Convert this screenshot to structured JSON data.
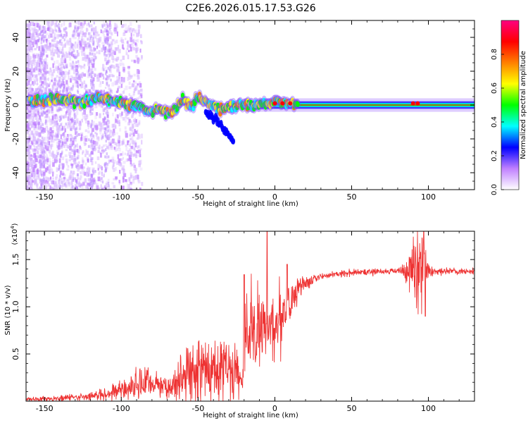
{
  "figure_title": "C2E6.2026.015.17.53.G26",
  "chart_data": [
    {
      "type": "heatmap",
      "name": "spectrogram",
      "title": "C2E6.2026.015.17.53.G26",
      "xlabel": "Height of straight line (km)",
      "ylabel": "Frequency (Hz)",
      "xlim": [
        -162,
        130
      ],
      "ylim": [
        -50,
        50
      ],
      "x_ticks": [
        -150,
        -100,
        -50,
        0,
        50,
        100
      ],
      "x_tick_labels": [
        "-150",
        "-100",
        "-50",
        "0",
        "50",
        "100"
      ],
      "y_ticks": [
        -40,
        -20,
        0,
        20,
        40
      ],
      "y_tick_labels": [
        "-40",
        "-20",
        "0",
        "20",
        "40"
      ],
      "colorbar": {
        "label": "Normalized spectral amplitude",
        "range": [
          0,
          1
        ],
        "ticks": [
          0.0,
          0.2,
          0.4,
          0.6,
          0.8
        ],
        "tick_labels": [
          "0.0",
          "0.2",
          "0.4",
          "0.6",
          "0.8"
        ],
        "colors": [
          "#ffffff",
          "#c080ff",
          "#0000ff",
          "#00ffff",
          "#00ff00",
          "#ffff00",
          "#ff8000",
          "#ff0000",
          "#ff0080"
        ]
      },
      "ridge_track": {
        "x": [
          -160,
          -150,
          -140,
          -130,
          -120,
          -110,
          -100,
          -95,
          -90,
          -85,
          -80,
          -75,
          -70,
          -65,
          -60,
          -55,
          -50,
          -45,
          -40,
          -35,
          -30,
          -25,
          -20,
          -15,
          -10,
          -5,
          0,
          5,
          10,
          15,
          20,
          50,
          90,
          100,
          130
        ],
        "freq": [
          2,
          3,
          3,
          2,
          3,
          4,
          2,
          0,
          -1,
          -2,
          -4,
          -2,
          -5,
          -3,
          3,
          -1,
          4,
          2,
          0,
          -3,
          -1,
          0,
          0,
          0,
          0,
          0,
          2,
          1,
          1,
          0,
          0,
          0,
          0,
          0,
          0
        ]
      },
      "descending_branch": {
        "x": [
          -45,
          -40,
          -35,
          -30,
          -27
        ],
        "freq": [
          -5,
          -8,
          -12,
          -18,
          -22
        ]
      }
    },
    {
      "type": "line",
      "name": "snr",
      "title": "",
      "xlabel": "Height of straight line (km)",
      "ylabel": "SNR (10 * v/v)",
      "scale_label": "(x10",
      "scale_exponent": "4",
      "scale_close": ")",
      "xlim": [
        -162,
        130
      ],
      "ylim": [
        0,
        1.8
      ],
      "x_ticks": [
        -150,
        -100,
        -50,
        0,
        50,
        100
      ],
      "x_tick_labels": [
        "-150",
        "-100",
        "-50",
        "0",
        "50",
        "100"
      ],
      "y_ticks": [
        0.5,
        1.0,
        1.5
      ],
      "y_tick_labels": [
        "0.5",
        "1.0",
        "1.5"
      ],
      "color": "#ee3333",
      "envelope": {
        "x": [
          -162,
          -140,
          -120,
          -110,
          -100,
          -90,
          -85,
          -80,
          -75,
          -70,
          -65,
          -60,
          -55,
          -50,
          -45,
          -40,
          -35,
          -30,
          -25,
          -21,
          -20,
          -15,
          -10,
          -5,
          0,
          5,
          10,
          15,
          20,
          30,
          40,
          50,
          60,
          80,
          88,
          92,
          95,
          97,
          100,
          105,
          130
        ],
        "mean": [
          0.02,
          0.03,
          0.05,
          0.08,
          0.12,
          0.16,
          0.2,
          0.18,
          0.2,
          0.12,
          0.18,
          0.25,
          0.3,
          0.38,
          0.3,
          0.35,
          0.38,
          0.32,
          0.3,
          0.08,
          0.75,
          0.7,
          0.72,
          0.78,
          0.8,
          0.95,
          1.1,
          1.2,
          1.26,
          1.32,
          1.35,
          1.36,
          1.37,
          1.38,
          1.38,
          1.38,
          1.4,
          1.35,
          1.38,
          1.37,
          1.38
        ],
        "noise": [
          0.02,
          0.03,
          0.04,
          0.06,
          0.1,
          0.13,
          0.16,
          0.14,
          0.15,
          0.12,
          0.18,
          0.22,
          0.3,
          0.34,
          0.32,
          0.35,
          0.35,
          0.35,
          0.3,
          0.08,
          0.45,
          0.38,
          0.42,
          0.38,
          0.36,
          0.32,
          0.3,
          0.12,
          0.06,
          0.03,
          0.03,
          0.03,
          0.03,
          0.03,
          0.2,
          0.35,
          0.4,
          0.3,
          0.1,
          0.03,
          0.03
        ]
      },
      "peaks": {
        "x": [
          -20,
          -5,
          8,
          97,
          98
        ],
        "y": [
          1.34,
          1.8,
          1.45,
          1.8,
          0.9
        ]
      }
    }
  ]
}
